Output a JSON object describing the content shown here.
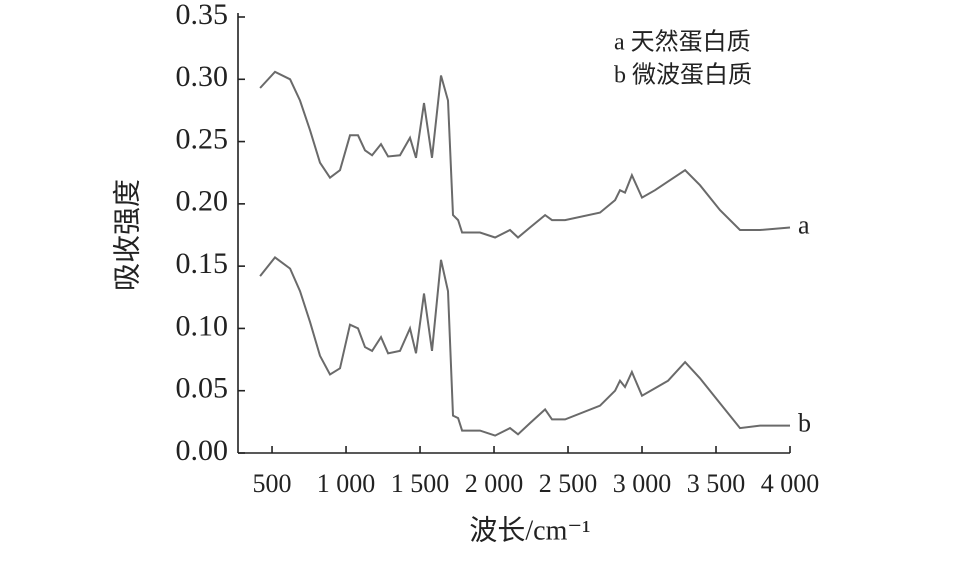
{
  "chart_data": {
    "type": "line",
    "x_label": "波长/cm⁻¹",
    "y_label": "吸收强度",
    "annotations": [
      "a 天然蛋白质",
      "b 微波蛋白质"
    ],
    "x": [
      419,
      520,
      622,
      689,
      757,
      824,
      892,
      959,
      1027,
      1081,
      1128,
      1176,
      1236,
      1284,
      1365,
      1432,
      1473,
      1527,
      1581,
      1642,
      1689,
      1723,
      1757,
      1784,
      1905,
      2007,
      2108,
      2162,
      2243,
      2345,
      2392,
      2480,
      2716,
      2818,
      2851,
      2885,
      2932,
      3000,
      3088,
      3176,
      3291,
      3392,
      3527,
      3662,
      3797,
      4000
    ],
    "series": [
      {
        "name": "a",
        "color": "#6a6a6a",
        "values": [
          0.293,
          0.306,
          0.3,
          0.283,
          0.259,
          0.233,
          0.221,
          0.227,
          0.255,
          0.255,
          0.243,
          0.239,
          0.248,
          0.238,
          0.239,
          0.253,
          0.237,
          0.281,
          0.237,
          0.303,
          0.283,
          0.191,
          0.187,
          0.177,
          0.177,
          0.173,
          0.179,
          0.173,
          0.181,
          0.191,
          0.187,
          0.187,
          0.193,
          0.203,
          0.211,
          0.209,
          0.223,
          0.205,
          0.211,
          0.218,
          0.227,
          0.215,
          0.195,
          0.179,
          0.179,
          0.181
        ]
      },
      {
        "name": "b",
        "color": "#6a6a6a",
        "values": [
          0.142,
          0.157,
          0.148,
          0.13,
          0.105,
          0.078,
          0.063,
          0.068,
          0.103,
          0.1,
          0.085,
          0.082,
          0.093,
          0.08,
          0.082,
          0.1,
          0.08,
          0.128,
          0.082,
          0.155,
          0.13,
          0.03,
          0.028,
          0.018,
          0.018,
          0.014,
          0.02,
          0.015,
          0.024,
          0.035,
          0.027,
          0.027,
          0.038,
          0.05,
          0.058,
          0.053,
          0.065,
          0.046,
          0.052,
          0.058,
          0.073,
          0.06,
          0.04,
          0.02,
          0.022,
          0.022
        ]
      }
    ],
    "xlim": [
      270,
      4000
    ],
    "xticks": [
      500,
      {
        "value": 1000,
        "label": "1 000"
      },
      {
        "value": 1500,
        "label": "1 500"
      },
      {
        "value": 2000,
        "label": "2 000"
      },
      {
        "value": 2500,
        "label": "2 500"
      },
      {
        "value": 3000,
        "label": "3 000"
      },
      {
        "value": 3500,
        "label": "3 500"
      },
      {
        "value": 4000,
        "label": "4 000"
      }
    ],
    "ylim": [
      0,
      0.35
    ],
    "yticks": [
      {
        "value": 0,
        "label": "0.00"
      },
      0.05,
      {
        "value": 0.1,
        "label": "0.10"
      },
      0.15,
      {
        "value": 0.2,
        "label": "0.20"
      },
      0.25,
      {
        "value": 0.3,
        "label": "0.30"
      },
      0.35
    ],
    "grid": false
  }
}
